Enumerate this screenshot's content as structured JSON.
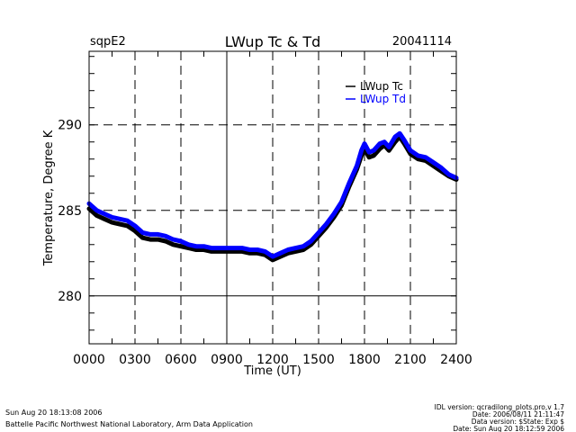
{
  "header": {
    "site": "sqpE2",
    "title": "LWup Tc & Td",
    "date": "20041114"
  },
  "footer": {
    "left_line1": "Sun Aug 20 18:13:08 2006",
    "left_line2": "Battelle Pacific Northwest National Laboratory, Arm Data Application",
    "right_line1": "IDL version: qcradilong_plots.pro,v 1.7",
    "right_line2": "Date: 2006/08/11 21:11:47",
    "right_line3": "Data version: $State: Exp $",
    "right_line4": "Date: Sun Aug 20 18:12:59 2006"
  },
  "chart_data": {
    "type": "line",
    "title": "LWup Tc & Td",
    "xlabel": "Time (UT)",
    "ylabel": "Temperature, Degree K",
    "xlim": [
      0,
      24
    ],
    "ylim": [
      277.2,
      294.3
    ],
    "x_ticks": [
      0,
      3,
      6,
      9,
      12,
      15,
      18,
      21,
      24
    ],
    "x_tick_labels": [
      "0000",
      "0300",
      "0600",
      "0900",
      "1200",
      "1500",
      "1800",
      "2100",
      "2400"
    ],
    "y_ticks": [
      280,
      285,
      290
    ],
    "y_tick_labels": [
      "280",
      "285",
      "290"
    ],
    "grid": true,
    "legend_position": "top-right",
    "series": [
      {
        "name": "LWup Tc",
        "color": "#000000",
        "x": [
          0,
          0.5,
          1,
          1.5,
          2,
          2.5,
          3,
          3.5,
          4,
          4.5,
          5,
          5.5,
          6,
          6.5,
          7,
          7.5,
          8,
          8.5,
          9,
          9.5,
          10,
          10.5,
          11,
          11.5,
          12,
          12.5,
          13,
          13.5,
          14,
          14.5,
          15,
          15.5,
          16,
          16.5,
          17,
          17.5,
          17.8,
          18,
          18.3,
          18.6,
          19,
          19.3,
          19.6,
          20,
          20.3,
          20.6,
          21,
          21.5,
          22,
          22.5,
          23,
          23.5,
          24
        ],
        "y": [
          285.1,
          284.7,
          284.5,
          284.3,
          284.2,
          284.1,
          283.8,
          283.4,
          283.3,
          283.3,
          283.2,
          283.0,
          282.9,
          282.8,
          282.7,
          282.7,
          282.6,
          282.6,
          282.6,
          282.6,
          282.6,
          282.5,
          282.5,
          282.4,
          282.1,
          282.3,
          282.5,
          282.6,
          282.7,
          283.0,
          283.5,
          284.0,
          284.6,
          285.3,
          286.4,
          287.4,
          288.2,
          288.6,
          288.1,
          288.2,
          288.6,
          288.8,
          288.5,
          289.0,
          289.3,
          288.9,
          288.3,
          288.0,
          287.9,
          287.6,
          287.3,
          287.0,
          286.8
        ]
      },
      {
        "name": "LWup Td",
        "color": "#0000FF",
        "x": [
          0,
          0.5,
          1,
          1.5,
          2,
          2.5,
          3,
          3.5,
          4,
          4.5,
          5,
          5.5,
          6,
          6.5,
          7,
          7.5,
          8,
          8.5,
          9,
          9.5,
          10,
          10.5,
          11,
          11.5,
          12,
          12.5,
          13,
          13.5,
          14,
          14.5,
          15,
          15.5,
          16,
          16.5,
          17,
          17.5,
          17.8,
          18,
          18.3,
          18.6,
          19,
          19.3,
          19.6,
          20,
          20.3,
          20.6,
          21,
          21.5,
          22,
          22.5,
          23,
          23.5,
          24
        ],
        "y": [
          285.4,
          285.0,
          284.8,
          284.6,
          284.5,
          284.4,
          284.1,
          283.7,
          283.6,
          283.6,
          283.5,
          283.3,
          283.2,
          283.0,
          282.9,
          282.9,
          282.8,
          282.8,
          282.8,
          282.8,
          282.8,
          282.7,
          282.7,
          282.6,
          282.3,
          282.5,
          282.7,
          282.8,
          282.9,
          283.2,
          283.7,
          284.2,
          284.8,
          285.5,
          286.6,
          287.6,
          288.5,
          288.9,
          288.4,
          288.5,
          288.9,
          289.0,
          288.7,
          289.3,
          289.5,
          289.1,
          288.5,
          288.2,
          288.1,
          287.8,
          287.5,
          287.1,
          286.9
        ]
      }
    ]
  }
}
